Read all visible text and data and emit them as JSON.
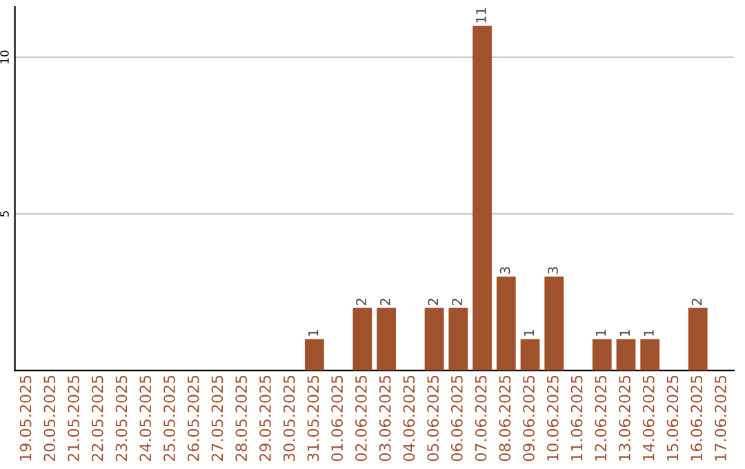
{
  "chart_data": {
    "type": "bar",
    "categories": [
      "19.05.2025",
      "20.05.2025",
      "21.05.2025",
      "22.05.2025",
      "23.05.2025",
      "24.05.2025",
      "25.05.2025",
      "26.05.2025",
      "27.05.2025",
      "28.05.2025",
      "29.05.2025",
      "30.05.2025",
      "31.05.2025",
      "01.06.2025",
      "02.06.2025",
      "03.06.2025",
      "04.06.2025",
      "05.06.2025",
      "06.06.2025",
      "07.06.2025",
      "08.06.2025",
      "09.06.2025",
      "10.06.2025",
      "11.06.2025",
      "12.06.2025",
      "13.06.2025",
      "14.06.2025",
      "15.06.2025",
      "16.06.2025",
      "17.06.2025"
    ],
    "values": [
      0,
      0,
      0,
      0,
      0,
      0,
      0,
      0,
      0,
      0,
      0,
      0,
      1,
      0,
      2,
      2,
      0,
      2,
      2,
      11,
      3,
      1,
      3,
      0,
      1,
      1,
      1,
      0,
      2,
      0
    ],
    "value_labels": [
      null,
      null,
      null,
      null,
      null,
      null,
      null,
      null,
      null,
      null,
      null,
      null,
      "1",
      null,
      "2",
      "2",
      null,
      "2",
      "2",
      "11",
      "3",
      "1",
      "3",
      null,
      "1",
      "1",
      "1",
      null,
      "2",
      null
    ],
    "color": "#a0522d",
    "ylim": [
      0,
      11.6
    ],
    "yticks": [
      5,
      10
    ],
    "grid": "y",
    "legend": false
  }
}
